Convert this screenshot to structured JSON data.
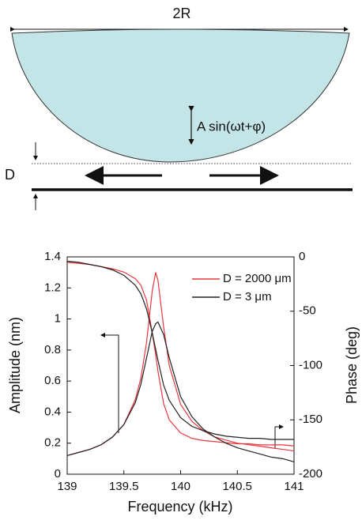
{
  "diagram": {
    "width_label": "2R",
    "motion_label": "A sin(ωt+φ)",
    "gap_label": "D"
  },
  "chart_data": {
    "type": "line",
    "x_label": "Frequency (kHz)",
    "y_label": "Amplitude (nm)",
    "y2_label": "Phase (deg)",
    "x": [
      139,
      139.1,
      139.2,
      139.3,
      139.4,
      139.5,
      139.6,
      139.65,
      139.7,
      139.75,
      139.78,
      139.8,
      139.85,
      139.9,
      140,
      140.1,
      140.2,
      140.3,
      140.4,
      140.5,
      140.6,
      140.7,
      140.8,
      140.9,
      141
    ],
    "series": [
      {
        "name": "D = 2000 μm",
        "color": "#e8383d",
        "values": [
          0.12,
          0.14,
          0.16,
          0.19,
          0.24,
          0.32,
          0.48,
          0.62,
          0.85,
          1.18,
          1.3,
          1.25,
          0.95,
          0.7,
          0.45,
          0.34,
          0.28,
          0.24,
          0.22,
          0.2,
          0.19,
          0.18,
          0.17,
          0.16,
          0.15
        ],
        "y2_values": [
          -5,
          -6,
          -7,
          -9,
          -11,
          -14,
          -20,
          -26,
          -40,
          -70,
          -90,
          -105,
          -135,
          -150,
          -162,
          -167,
          -169,
          -170,
          -171,
          -172,
          -172,
          -173,
          -173,
          -173,
          -174
        ]
      },
      {
        "name": "D = 3 μm",
        "color": "#222222",
        "values": [
          0.12,
          0.14,
          0.16,
          0.19,
          0.24,
          0.32,
          0.46,
          0.58,
          0.75,
          0.92,
          0.97,
          0.98,
          0.9,
          0.75,
          0.5,
          0.37,
          0.29,
          0.24,
          0.2,
          0.17,
          0.15,
          0.13,
          0.11,
          0.1,
          0.08
        ],
        "y2_values": [
          -4,
          -5,
          -7,
          -9,
          -12,
          -17,
          -26,
          -34,
          -48,
          -70,
          -85,
          -95,
          -118,
          -132,
          -148,
          -156,
          -160,
          -163,
          -165,
          -166,
          -167,
          -167,
          -168,
          -168,
          -168
        ]
      }
    ],
    "xlim": [
      139,
      141
    ],
    "xticks": [
      139,
      139.5,
      140,
      140.5,
      141
    ],
    "ylim": [
      0,
      1.4
    ],
    "yticks": [
      0,
      0.2,
      0.4,
      0.6,
      0.8,
      1,
      1.2,
      1.4
    ],
    "y2lim": [
      -200,
      0
    ],
    "y2ticks": [
      -200,
      -150,
      -100,
      -50,
      0
    ]
  }
}
